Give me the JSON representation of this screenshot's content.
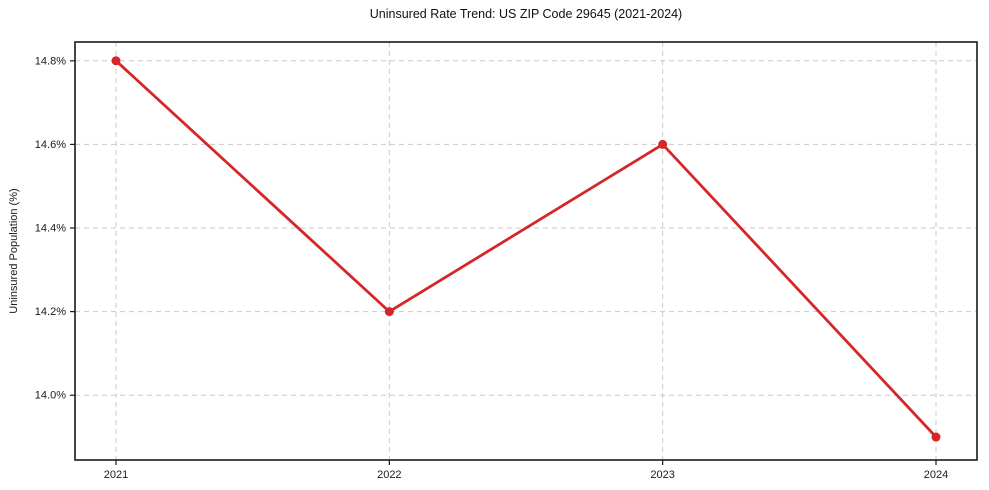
{
  "title": "Uninsured Rate Trend: US ZIP Code 29645 (2021-2024)",
  "chart_data": {
    "type": "line",
    "title": "Uninsured Rate Trend: US ZIP Code 29645 (2021-2024)",
    "xlabel": "",
    "ylabel": "Uninsured Population (%)",
    "x": [
      2021,
      2022,
      2023,
      2024
    ],
    "values": [
      14.8,
      14.2,
      14.6,
      13.9
    ],
    "xticks": [
      2021,
      2022,
      2023,
      2024
    ],
    "xtick_labels": [
      "2021",
      "2022",
      "2023",
      "2024"
    ],
    "yticks": [
      14.0,
      14.2,
      14.4,
      14.6,
      14.8
    ],
    "ytick_labels": [
      "14.0%",
      "14.2%",
      "14.4%",
      "14.6%",
      "14.8%"
    ],
    "xlim": [
      2020.85,
      2024.15
    ],
    "ylim": [
      13.845,
      14.845
    ],
    "grid": true,
    "grid_style": "dashed",
    "legend": "none",
    "colors": {
      "line": "#d62728",
      "marker": "#d62728",
      "grid": "#c9c9c9",
      "spine": "#1a1a1a",
      "text": "#1a1a1a",
      "background": "#ffffff"
    }
  }
}
